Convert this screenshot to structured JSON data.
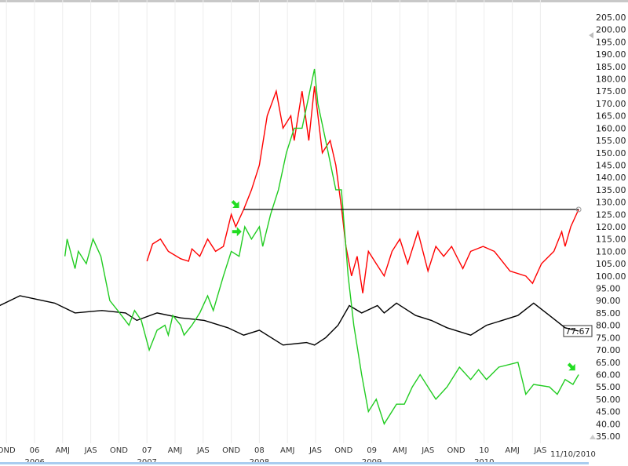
{
  "chart_data": {
    "type": "line",
    "title": "",
    "xlabel": "",
    "ylabel": "",
    "xlim": [
      2005.69,
      2010.9
    ],
    "ylim": [
      35,
      205
    ],
    "yticks": [
      "205.00",
      "200.00",
      "195.00",
      "190.00",
      "185.00",
      "180.00",
      "175.00",
      "170.00",
      "165.00",
      "160.00",
      "155.00",
      "150.00",
      "145.00",
      "140.00",
      "135.00",
      "130.00",
      "125.00",
      "120.00",
      "115.00",
      "110.00",
      "105.00",
      "100.00",
      "95.00",
      "90.00",
      "85.00",
      "80.00",
      "75.00",
      "70.00",
      "65.00",
      "60.00",
      "55.00",
      "50.00",
      "45.00",
      "40.00",
      "35.00"
    ],
    "xticks": [
      {
        "t": 2005.75,
        "label": "OND",
        "year": "2006"
      },
      {
        "t": 2006.0,
        "label": "06",
        "year": ""
      },
      {
        "t": 2006.25,
        "label": "AMJ",
        "year": ""
      },
      {
        "t": 2006.5,
        "label": "JAS",
        "year": ""
      },
      {
        "t": 2006.75,
        "label": "OND",
        "year": ""
      },
      {
        "t": 2007.0,
        "label": "07",
        "year": "2007"
      },
      {
        "t": 2007.25,
        "label": "AMJ",
        "year": ""
      },
      {
        "t": 2007.5,
        "label": "JAS",
        "year": ""
      },
      {
        "t": 2007.75,
        "label": "OND",
        "year": ""
      },
      {
        "t": 2008.0,
        "label": "08",
        "year": "2008"
      },
      {
        "t": 2008.25,
        "label": "AMJ",
        "year": ""
      },
      {
        "t": 2008.5,
        "label": "JAS",
        "year": ""
      },
      {
        "t": 2008.75,
        "label": "OND",
        "year": ""
      },
      {
        "t": 2009.0,
        "label": "09",
        "year": "2009"
      },
      {
        "t": 2009.25,
        "label": "AMJ",
        "year": ""
      },
      {
        "t": 2009.5,
        "label": "JAS",
        "year": ""
      },
      {
        "t": 2009.75,
        "label": "OND",
        "year": ""
      },
      {
        "t": 2010.0,
        "label": "10",
        "year": "2010"
      },
      {
        "t": 2010.25,
        "label": "AMJ",
        "year": ""
      },
      {
        "t": 2010.5,
        "label": "JAS",
        "year": ""
      }
    ],
    "last_date_label": "11/10/2010",
    "last_value_label": "77.67",
    "grid": "vertical",
    "series": [
      {
        "name": "black",
        "color": "#000000",
        "points": [
          [
            2005.69,
            88
          ],
          [
            2005.87,
            92
          ],
          [
            2006.18,
            89
          ],
          [
            2006.36,
            85
          ],
          [
            2006.6,
            86
          ],
          [
            2006.81,
            85
          ],
          [
            2006.91,
            82
          ],
          [
            2007.09,
            85
          ],
          [
            2007.3,
            83
          ],
          [
            2007.51,
            82
          ],
          [
            2007.72,
            79
          ],
          [
            2007.86,
            76
          ],
          [
            2008.0,
            78
          ],
          [
            2008.21,
            72
          ],
          [
            2008.42,
            73
          ],
          [
            2008.49,
            72
          ],
          [
            2008.59,
            75
          ],
          [
            2008.7,
            80
          ],
          [
            2008.8,
            88
          ],
          [
            2008.91,
            85
          ],
          [
            2009.05,
            88
          ],
          [
            2009.11,
            85
          ],
          [
            2009.22,
            89
          ],
          [
            2009.39,
            84
          ],
          [
            2009.53,
            82
          ],
          [
            2009.67,
            79
          ],
          [
            2009.81,
            77
          ],
          [
            2009.88,
            76
          ],
          [
            2010.02,
            80
          ],
          [
            2010.16,
            82
          ],
          [
            2010.3,
            84
          ],
          [
            2010.44,
            89
          ],
          [
            2010.58,
            84
          ],
          [
            2010.72,
            79
          ],
          [
            2010.84,
            77.67
          ]
        ]
      },
      {
        "name": "red",
        "color": "#ff0000",
        "points": [
          [
            2007.0,
            106
          ],
          [
            2007.05,
            113
          ],
          [
            2007.12,
            115
          ],
          [
            2007.19,
            110
          ],
          [
            2007.3,
            107
          ],
          [
            2007.37,
            106
          ],
          [
            2007.4,
            111
          ],
          [
            2007.47,
            108
          ],
          [
            2007.54,
            115
          ],
          [
            2007.61,
            110
          ],
          [
            2007.68,
            112
          ],
          [
            2007.75,
            125
          ],
          [
            2007.79,
            120
          ],
          [
            2007.86,
            127
          ],
          [
            2007.93,
            135
          ],
          [
            2008.0,
            145
          ],
          [
            2008.07,
            165
          ],
          [
            2008.15,
            175
          ],
          [
            2008.21,
            160
          ],
          [
            2008.28,
            165
          ],
          [
            2008.31,
            155
          ],
          [
            2008.38,
            175
          ],
          [
            2008.44,
            155
          ],
          [
            2008.49,
            177
          ],
          [
            2008.56,
            150
          ],
          [
            2008.63,
            155
          ],
          [
            2008.68,
            145
          ],
          [
            2008.73,
            128
          ],
          [
            2008.77,
            112
          ],
          [
            2008.82,
            100
          ],
          [
            2008.87,
            108
          ],
          [
            2008.92,
            93
          ],
          [
            2008.97,
            110
          ],
          [
            2009.04,
            105
          ],
          [
            2009.11,
            100
          ],
          [
            2009.18,
            110
          ],
          [
            2009.25,
            115
          ],
          [
            2009.32,
            105
          ],
          [
            2009.41,
            118
          ],
          [
            2009.5,
            102
          ],
          [
            2009.57,
            112
          ],
          [
            2009.64,
            108
          ],
          [
            2009.71,
            112
          ],
          [
            2009.81,
            103
          ],
          [
            2009.88,
            110
          ],
          [
            2009.99,
            112
          ],
          [
            2010.09,
            110
          ],
          [
            2010.23,
            102
          ],
          [
            2010.37,
            100
          ],
          [
            2010.43,
            97
          ],
          [
            2010.51,
            105
          ],
          [
            2010.62,
            110
          ],
          [
            2010.69,
            118
          ],
          [
            2010.72,
            112
          ],
          [
            2010.77,
            120
          ],
          [
            2010.84,
            127
          ]
        ]
      },
      {
        "name": "green",
        "color": "#22cc22",
        "points": [
          [
            2006.27,
            108
          ],
          [
            2006.29,
            115
          ],
          [
            2006.36,
            103
          ],
          [
            2006.39,
            110
          ],
          [
            2006.46,
            105
          ],
          [
            2006.52,
            115
          ],
          [
            2006.59,
            108
          ],
          [
            2006.67,
            90
          ],
          [
            2006.74,
            86
          ],
          [
            2006.84,
            80
          ],
          [
            2006.89,
            86
          ],
          [
            2006.95,
            82
          ],
          [
            2007.02,
            70
          ],
          [
            2007.09,
            78
          ],
          [
            2007.16,
            80
          ],
          [
            2007.19,
            76
          ],
          [
            2007.23,
            84
          ],
          [
            2007.3,
            80
          ],
          [
            2007.33,
            76
          ],
          [
            2007.4,
            80
          ],
          [
            2007.47,
            85
          ],
          [
            2007.54,
            92
          ],
          [
            2007.59,
            86
          ],
          [
            2007.68,
            100
          ],
          [
            2007.75,
            110
          ],
          [
            2007.82,
            108
          ],
          [
            2007.87,
            120
          ],
          [
            2007.93,
            115
          ],
          [
            2008.0,
            120
          ],
          [
            2008.03,
            112
          ],
          [
            2008.1,
            125
          ],
          [
            2008.17,
            135
          ],
          [
            2008.24,
            150
          ],
          [
            2008.31,
            160
          ],
          [
            2008.38,
            160
          ],
          [
            2008.49,
            184
          ],
          [
            2008.52,
            170
          ],
          [
            2008.59,
            155
          ],
          [
            2008.68,
            135
          ],
          [
            2008.73,
            135
          ],
          [
            2008.79,
            100
          ],
          [
            2008.84,
            80
          ],
          [
            2008.91,
            60
          ],
          [
            2008.97,
            45
          ],
          [
            2009.04,
            50
          ],
          [
            2009.11,
            40
          ],
          [
            2009.22,
            48
          ],
          [
            2009.29,
            48
          ],
          [
            2009.36,
            55
          ],
          [
            2009.43,
            60
          ],
          [
            2009.5,
            55
          ],
          [
            2009.57,
            50
          ],
          [
            2009.67,
            55
          ],
          [
            2009.78,
            63
          ],
          [
            2009.88,
            58
          ],
          [
            2009.95,
            62
          ],
          [
            2010.02,
            58
          ],
          [
            2010.13,
            63
          ],
          [
            2010.3,
            65
          ],
          [
            2010.37,
            52
          ],
          [
            2010.44,
            56
          ],
          [
            2010.58,
            55
          ],
          [
            2010.65,
            52
          ],
          [
            2010.72,
            58
          ],
          [
            2010.79,
            56
          ],
          [
            2010.84,
            60
          ]
        ]
      }
    ],
    "annotations": [
      {
        "type": "hline",
        "value": 127,
        "from": 2007.86,
        "to": 2010.84,
        "color": "#000000"
      },
      {
        "type": "arrow",
        "t": 2007.79,
        "value": 129,
        "color": "#22dd22",
        "dir": "down-right"
      },
      {
        "type": "arrow",
        "t": 2007.8,
        "value": 118,
        "color": "#22dd22",
        "dir": "right"
      },
      {
        "type": "arrow",
        "t": 2010.78,
        "value": 63,
        "color": "#22dd22",
        "dir": "down-right"
      }
    ]
  }
}
